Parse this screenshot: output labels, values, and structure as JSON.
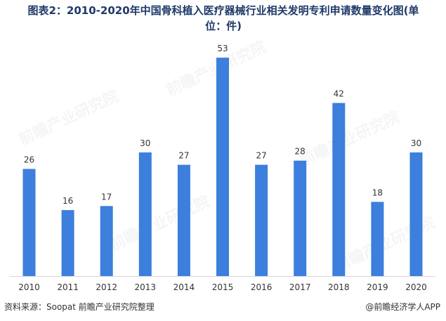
{
  "title_line1": "图表2：2010-2020年中国骨科植入医疗器械行业相关发明专利申请数量变化图(单",
  "title_line2": "位：件)",
  "source": "资料来源：Soopat 前瞻产业研究院整理",
  "credit": "@前瞻经济学人APP",
  "watermark_text": "前瞻产业研究院",
  "colors": {
    "bar": "#3c7fdc",
    "axis": "#d9d9d9",
    "title": "#1f3a68",
    "text": "#333333"
  },
  "chart_data": {
    "type": "bar",
    "categories": [
      "2010",
      "2011",
      "2012",
      "2013",
      "2014",
      "2015",
      "2016",
      "2017",
      "2018",
      "2019",
      "2020"
    ],
    "values": [
      26,
      16,
      17,
      30,
      27,
      53,
      27,
      28,
      42,
      18,
      30
    ],
    "data_labels": true,
    "ylim": [
      0,
      60
    ],
    "grid": false,
    "legend": "none"
  }
}
